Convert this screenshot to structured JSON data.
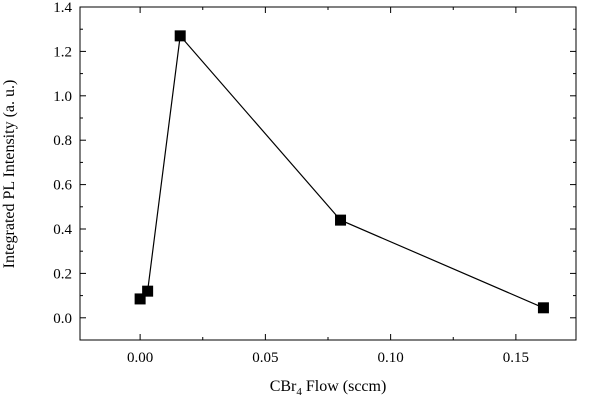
{
  "chart_data": {
    "type": "scatter",
    "connected": true,
    "marker": "square",
    "x": [
      0.0,
      0.003,
      0.016,
      0.08,
      0.161
    ],
    "y": [
      0.085,
      0.12,
      1.27,
      0.44,
      0.045
    ],
    "xlim": [
      -0.024,
      0.174
    ],
    "ylim": [
      -0.1,
      1.4
    ],
    "xticks": [
      0.0,
      0.05,
      0.1,
      0.15
    ],
    "xtick_labels": [
      "0.00",
      "0.05",
      "0.10",
      "0.15"
    ],
    "yticks": [
      0.0,
      0.2,
      0.4,
      0.6,
      0.8,
      1.0,
      1.2,
      1.4
    ],
    "ytick_labels": [
      "0.0",
      "0.2",
      "0.4",
      "0.6",
      "0.8",
      "1.0",
      "1.2",
      "1.4"
    ],
    "xlabel_parts": [
      "CBr",
      "4",
      " Flow (sccm)"
    ],
    "ylabel": "Integrated PL Intensity (a. u.)",
    "grid": false,
    "colors": {
      "marker": "#000000",
      "line": "#000000",
      "axes": "#000000"
    }
  }
}
